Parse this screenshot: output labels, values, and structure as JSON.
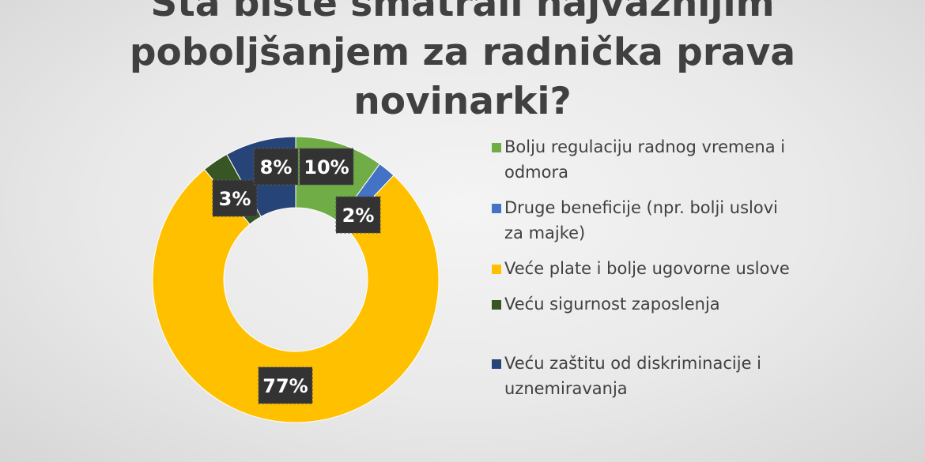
{
  "chart_data": {
    "type": "pie",
    "title": "Šta biste smatrali najvažnijim poboljšanjem za radnička prava novinarki?",
    "title_lines": [
      "Šta biste smatrali najvažnijim",
      "poboljšanjem za radnička prava",
      "novinarki?"
    ],
    "donut": true,
    "legend_position": "right",
    "slices": [
      {
        "label": "Bolju regulaciju radnog vremena i odmora",
        "value": 10,
        "display": "10%",
        "color": "#70ad47"
      },
      {
        "label": "Druge beneficije (npr. bolji uslovi za majke)",
        "value": 2,
        "display": "2%",
        "color": "#4472c4"
      },
      {
        "label": "Veće plate i bolje ugovorne uslove",
        "value": 77,
        "display": "77%",
        "color": "#ffc000"
      },
      {
        "label": "Veću sigurnost zaposlenja",
        "value": 3,
        "display": "3%",
        "color": "#375623"
      },
      {
        "label": "Veću zaštitu od diskriminacije i uznemiravanja",
        "value": 8,
        "display": "8%",
        "color": "#264478"
      }
    ]
  }
}
